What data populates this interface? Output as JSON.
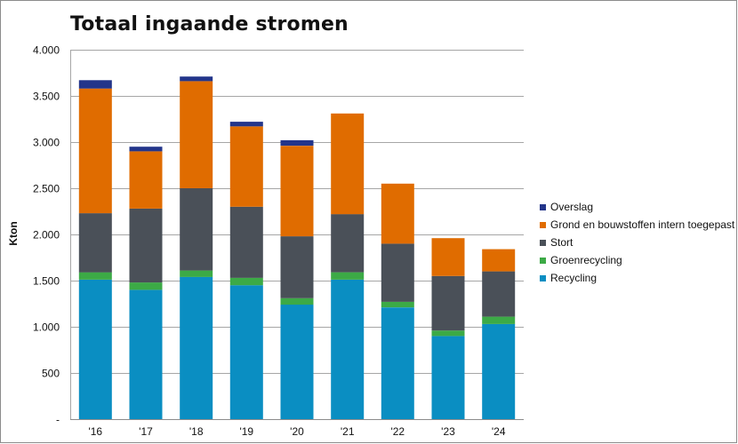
{
  "chart_data": {
    "type": "bar",
    "stacked": true,
    "title": "Totaal ingaande stromen",
    "ylabel": "Kton",
    "xlabel": "",
    "ylim": [
      0,
      4000
    ],
    "yticks": [
      {
        "value": 0,
        "label": "-"
      },
      {
        "value": 500,
        "label": "500"
      },
      {
        "value": 1000,
        "label": "1.000"
      },
      {
        "value": 1500,
        "label": "1.500"
      },
      {
        "value": 2000,
        "label": "2.000"
      },
      {
        "value": 2500,
        "label": "2.500"
      },
      {
        "value": 3000,
        "label": "3.000"
      },
      {
        "value": 3500,
        "label": "3.500"
      },
      {
        "value": 4000,
        "label": "4.000"
      }
    ],
    "grid": true,
    "legend_position": "right",
    "categories": [
      "'16",
      "'17",
      "'18",
      "'19",
      "'20",
      "'21",
      "'22",
      "'23",
      "'24"
    ],
    "series": [
      {
        "name": "Recycling",
        "color": "#0a8ec2",
        "values": [
          1510,
          1400,
          1540,
          1450,
          1240,
          1510,
          1210,
          900,
          1030
        ]
      },
      {
        "name": "Groenrecycling",
        "color": "#3caa46",
        "values": [
          80,
          80,
          70,
          80,
          70,
          80,
          60,
          60,
          80
        ]
      },
      {
        "name": "Stort",
        "color": "#4a5058",
        "values": [
          640,
          800,
          890,
          770,
          670,
          630,
          630,
          590,
          490
        ]
      },
      {
        "name": "Grond en bouwstoffen intern toegepast",
        "color": "#e06c00",
        "values": [
          1350,
          620,
          1160,
          870,
          980,
          1090,
          650,
          410,
          240
        ]
      },
      {
        "name": "Overslag",
        "color": "#23358a",
        "values": [
          90,
          50,
          50,
          50,
          60,
          0,
          0,
          0,
          0
        ]
      }
    ],
    "legend_order": [
      "Overslag",
      "Grond en bouwstoffen intern toegepast",
      "Stort",
      "Groenrecycling",
      "Recycling"
    ]
  }
}
